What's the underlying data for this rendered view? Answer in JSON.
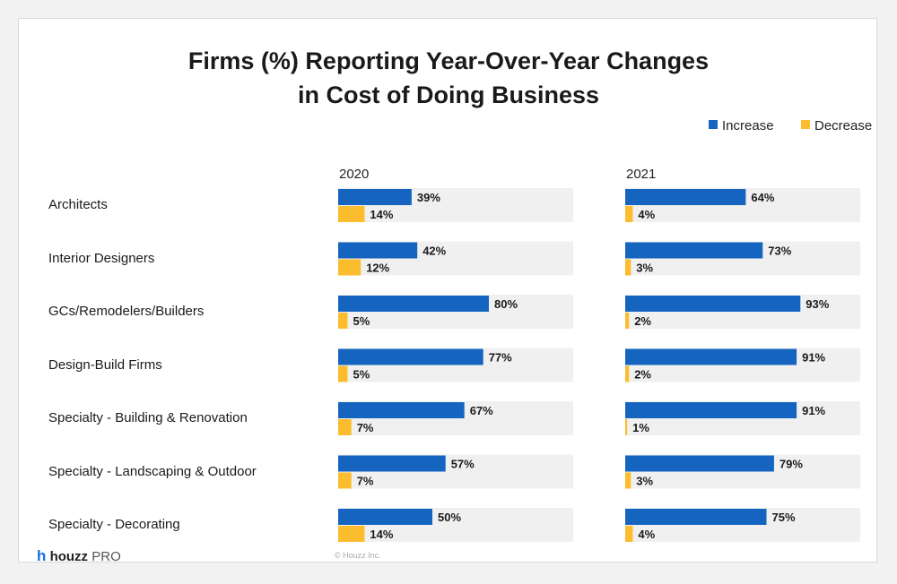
{
  "colors": {
    "increase": "#1565c0",
    "decrease": "#fbbc2e",
    "track": "#f0f0f0"
  },
  "branding": {
    "logo_mark": "h",
    "logo_brand": "houzz",
    "logo_suffix": "PRO",
    "copyright": "© Houzz Inc."
  },
  "chart_data": {
    "type": "bar",
    "orientation": "horizontal",
    "title": "Firms (%) Reporting Year-Over-Year Changes in Cost of Doing Business",
    "title_lines": [
      "Firms (%) Reporting Year-Over-Year Changes",
      "in Cost of Doing Business"
    ],
    "legend": {
      "position": "top-right",
      "entries": [
        "Increase",
        "Decrease"
      ]
    },
    "categories": [
      "Architects",
      "Interior Designers",
      "GCs/Remodelers/Builders",
      "Design-Build Firms",
      "Specialty - Building & Renovation",
      "Specialty - Landscaping & Outdoor",
      "Specialty - Decorating"
    ],
    "xlim": [
      0,
      100
    ],
    "grid": false,
    "panels": [
      {
        "label": "2020",
        "series": [
          {
            "name": "Increase",
            "values": [
              39,
              42,
              80,
              77,
              67,
              57,
              50
            ]
          },
          {
            "name": "Decrease",
            "values": [
              14,
              12,
              5,
              5,
              7,
              7,
              14
            ]
          }
        ]
      },
      {
        "label": "2021",
        "series": [
          {
            "name": "Increase",
            "values": [
              64,
              73,
              93,
              91,
              91,
              79,
              75
            ]
          },
          {
            "name": "Decrease",
            "values": [
              4,
              3,
              2,
              2,
              1,
              3,
              4
            ]
          }
        ]
      }
    ]
  }
}
